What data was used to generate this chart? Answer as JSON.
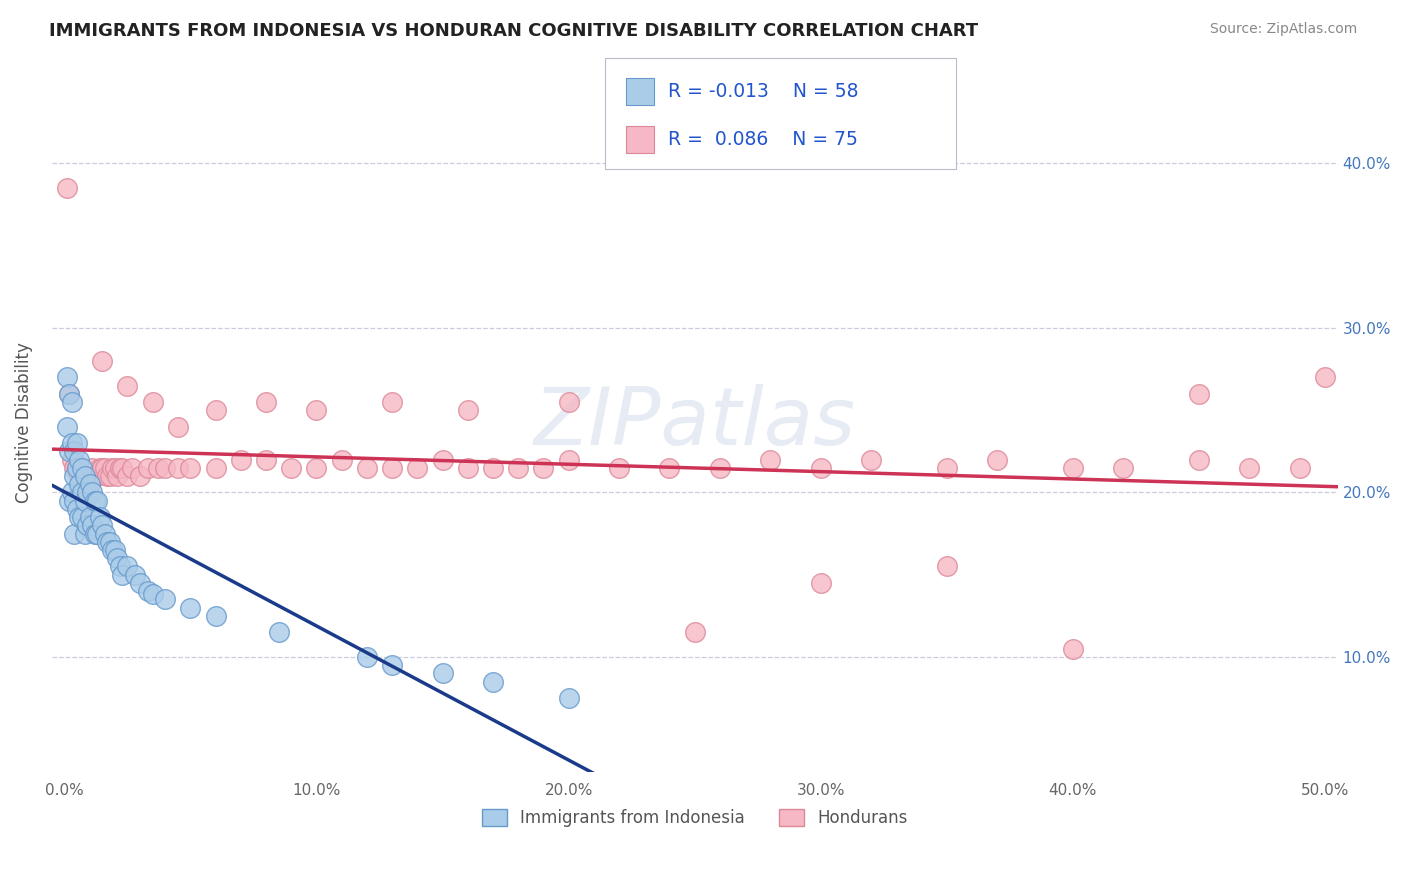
{
  "title": "IMMIGRANTS FROM INDONESIA VS HONDURAN COGNITIVE DISABILITY CORRELATION CHART",
  "source": "Source: ZipAtlas.com",
  "ylabel": "Cognitive Disability",
  "x_tick_labels": [
    "0.0%",
    "10.0%",
    "20.0%",
    "30.0%",
    "40.0%",
    "50.0%"
  ],
  "x_tick_values": [
    0.0,
    0.1,
    0.2,
    0.3,
    0.4,
    0.5
  ],
  "y_tick_labels": [
    "10.0%",
    "20.0%",
    "30.0%",
    "40.0%"
  ],
  "y_tick_values": [
    0.1,
    0.2,
    0.3,
    0.4
  ],
  "xlim": [
    -0.005,
    0.505
  ],
  "ylim": [
    0.03,
    0.455
  ],
  "legend_label1": "Immigrants from Indonesia",
  "legend_label2": "Hondurans",
  "series1_color": "#aacce8",
  "series1_edge": "#6699cc",
  "series2_color": "#f5b8c4",
  "series2_edge": "#dd8899",
  "trend1_solid_color": "#1a3a8a",
  "trend1_dash_color": "#6688bb",
  "trend2_color": "#cc3355",
  "background_color": "#ffffff",
  "grid_color": "#ccccdd",
  "title_color": "#222222",
  "legend_text_color": "#2255cc",
  "watermark": "ZIPatlas",
  "series1_x": [
    0.001,
    0.001,
    0.002,
    0.002,
    0.002,
    0.003,
    0.003,
    0.003,
    0.004,
    0.004,
    0.004,
    0.004,
    0.005,
    0.005,
    0.005,
    0.006,
    0.006,
    0.006,
    0.007,
    0.007,
    0.007,
    0.008,
    0.008,
    0.008,
    0.009,
    0.009,
    0.01,
    0.01,
    0.011,
    0.011,
    0.012,
    0.012,
    0.013,
    0.013,
    0.014,
    0.015,
    0.016,
    0.017,
    0.018,
    0.019,
    0.02,
    0.021,
    0.022,
    0.023,
    0.025,
    0.028,
    0.03,
    0.033,
    0.035,
    0.04,
    0.05,
    0.06,
    0.085,
    0.12,
    0.13,
    0.15,
    0.17,
    0.2
  ],
  "series1_y": [
    0.27,
    0.24,
    0.26,
    0.225,
    0.195,
    0.255,
    0.23,
    0.2,
    0.225,
    0.21,
    0.195,
    0.175,
    0.23,
    0.215,
    0.19,
    0.22,
    0.205,
    0.185,
    0.215,
    0.2,
    0.185,
    0.21,
    0.195,
    0.175,
    0.2,
    0.18,
    0.205,
    0.185,
    0.2,
    0.18,
    0.195,
    0.175,
    0.195,
    0.175,
    0.185,
    0.18,
    0.175,
    0.17,
    0.17,
    0.165,
    0.165,
    0.16,
    0.155,
    0.15,
    0.155,
    0.15,
    0.145,
    0.14,
    0.138,
    0.135,
    0.13,
    0.125,
    0.115,
    0.1,
    0.095,
    0.09,
    0.085,
    0.075
  ],
  "series2_x": [
    0.001,
    0.002,
    0.003,
    0.004,
    0.005,
    0.006,
    0.007,
    0.008,
    0.009,
    0.01,
    0.011,
    0.012,
    0.013,
    0.014,
    0.015,
    0.016,
    0.017,
    0.018,
    0.019,
    0.02,
    0.021,
    0.022,
    0.023,
    0.025,
    0.027,
    0.03,
    0.033,
    0.037,
    0.04,
    0.045,
    0.05,
    0.06,
    0.07,
    0.08,
    0.09,
    0.1,
    0.11,
    0.12,
    0.13,
    0.14,
    0.15,
    0.16,
    0.17,
    0.18,
    0.19,
    0.2,
    0.22,
    0.24,
    0.26,
    0.28,
    0.3,
    0.32,
    0.35,
    0.37,
    0.4,
    0.42,
    0.45,
    0.47,
    0.49,
    0.5,
    0.015,
    0.025,
    0.035,
    0.045,
    0.06,
    0.08,
    0.1,
    0.13,
    0.16,
    0.2,
    0.25,
    0.3,
    0.35,
    0.4,
    0.45
  ],
  "series2_y": [
    0.385,
    0.26,
    0.22,
    0.215,
    0.215,
    0.21,
    0.215,
    0.21,
    0.21,
    0.21,
    0.215,
    0.21,
    0.21,
    0.215,
    0.215,
    0.215,
    0.21,
    0.21,
    0.215,
    0.215,
    0.21,
    0.215,
    0.215,
    0.21,
    0.215,
    0.21,
    0.215,
    0.215,
    0.215,
    0.215,
    0.215,
    0.215,
    0.22,
    0.22,
    0.215,
    0.215,
    0.22,
    0.215,
    0.215,
    0.215,
    0.22,
    0.215,
    0.215,
    0.215,
    0.215,
    0.22,
    0.215,
    0.215,
    0.215,
    0.22,
    0.215,
    0.22,
    0.215,
    0.22,
    0.215,
    0.215,
    0.22,
    0.215,
    0.215,
    0.27,
    0.28,
    0.265,
    0.255,
    0.24,
    0.25,
    0.255,
    0.25,
    0.255,
    0.25,
    0.255,
    0.115,
    0.145,
    0.155,
    0.105,
    0.26
  ]
}
